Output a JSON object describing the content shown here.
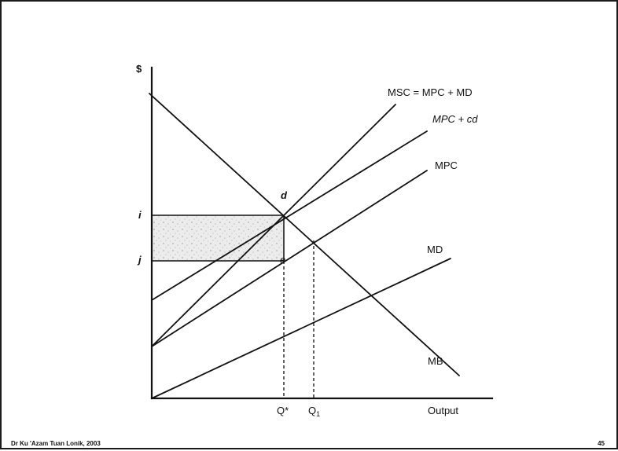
{
  "labels": {
    "y_axis": "$",
    "x_axis": "Output",
    "msc": "MSC = MPC + MD",
    "mpc_cd": "MPC + cd",
    "mpc": "MPC",
    "md": "MD",
    "mb": "MB",
    "point_d": "d",
    "point_e": "e",
    "price_i": "i",
    "price_j": "j",
    "qstar": "Q*",
    "q1_base": "Q",
    "q1_sub": "1"
  },
  "footer": {
    "credit": "Dr Ku 'Azam Tuan Lonik, 2003",
    "page": "45"
  },
  "colors": {
    "line": "#111111",
    "shade": "#dedede",
    "background": "#ffffff"
  }
}
